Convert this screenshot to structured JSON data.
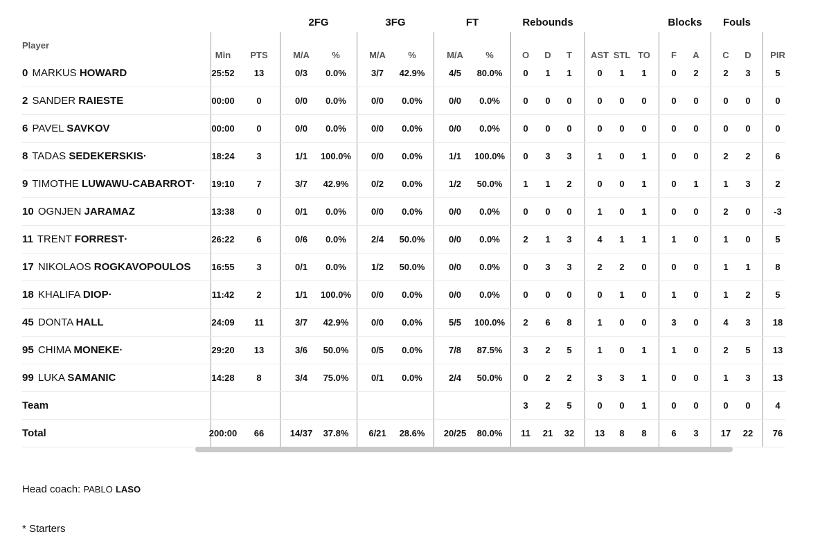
{
  "groups": [
    "2FG",
    "3FG",
    "FT",
    "Rebounds",
    "Blocks",
    "Fouls"
  ],
  "player_header": "Player",
  "columns": [
    "Min",
    "PTS",
    "M/A",
    "%",
    "M/A",
    "%",
    "M/A",
    "%",
    "O",
    "D",
    "T",
    "AST",
    "STL",
    "TO",
    "F",
    "A",
    "C",
    "D",
    "PIR"
  ],
  "players": [
    {
      "num": "0",
      "first": "MARKUS",
      "last": "HOWARD",
      "starter": "",
      "stats": [
        "25:52",
        "13",
        "0/3",
        "0.0%",
        "3/7",
        "42.9%",
        "4/5",
        "80.0%",
        "0",
        "1",
        "1",
        "0",
        "1",
        "1",
        "0",
        "2",
        "2",
        "3",
        "5"
      ]
    },
    {
      "num": "2",
      "first": "SANDER",
      "last": "RAIESTE",
      "starter": "",
      "stats": [
        "00:00",
        "0",
        "0/0",
        "0.0%",
        "0/0",
        "0.0%",
        "0/0",
        "0.0%",
        "0",
        "0",
        "0",
        "0",
        "0",
        "0",
        "0",
        "0",
        "0",
        "0",
        "0"
      ]
    },
    {
      "num": "6",
      "first": "PAVEL",
      "last": "SAVKOV",
      "starter": "",
      "stats": [
        "00:00",
        "0",
        "0/0",
        "0.0%",
        "0/0",
        "0.0%",
        "0/0",
        "0.0%",
        "0",
        "0",
        "0",
        "0",
        "0",
        "0",
        "0",
        "0",
        "0",
        "0",
        "0"
      ]
    },
    {
      "num": "8",
      "first": "TADAS",
      "last": "SEDEKERSKIS",
      "starter": "·",
      "stats": [
        "18:24",
        "3",
        "1/1",
        "100.0%",
        "0/0",
        "0.0%",
        "1/1",
        "100.0%",
        "0",
        "3",
        "3",
        "1",
        "0",
        "1",
        "0",
        "0",
        "2",
        "2",
        "6"
      ]
    },
    {
      "num": "9",
      "first": "TIMOTHE",
      "last": "LUWAWU-CABARROT",
      "starter": "·",
      "stats": [
        "19:10",
        "7",
        "3/7",
        "42.9%",
        "0/2",
        "0.0%",
        "1/2",
        "50.0%",
        "1",
        "1",
        "2",
        "0",
        "0",
        "1",
        "0",
        "1",
        "1",
        "3",
        "2"
      ]
    },
    {
      "num": "10",
      "first": "OGNJEN",
      "last": "JARAMAZ",
      "starter": "",
      "stats": [
        "13:38",
        "0",
        "0/1",
        "0.0%",
        "0/0",
        "0.0%",
        "0/0",
        "0.0%",
        "0",
        "0",
        "0",
        "1",
        "0",
        "1",
        "0",
        "0",
        "2",
        "0",
        "-3"
      ]
    },
    {
      "num": "11",
      "first": "TRENT",
      "last": "FORREST",
      "starter": "·",
      "stats": [
        "26:22",
        "6",
        "0/6",
        "0.0%",
        "2/4",
        "50.0%",
        "0/0",
        "0.0%",
        "2",
        "1",
        "3",
        "4",
        "1",
        "1",
        "1",
        "0",
        "1",
        "0",
        "5"
      ]
    },
    {
      "num": "17",
      "first": "NIKOLAOS",
      "last": "ROGKAVOPOULOS",
      "starter": "",
      "stats": [
        "16:55",
        "3",
        "0/1",
        "0.0%",
        "1/2",
        "50.0%",
        "0/0",
        "0.0%",
        "0",
        "3",
        "3",
        "2",
        "2",
        "0",
        "0",
        "0",
        "1",
        "1",
        "8"
      ]
    },
    {
      "num": "18",
      "first": "KHALIFA",
      "last": "DIOP",
      "starter": "·",
      "stats": [
        "11:42",
        "2",
        "1/1",
        "100.0%",
        "0/0",
        "0.0%",
        "0/0",
        "0.0%",
        "0",
        "0",
        "0",
        "0",
        "1",
        "0",
        "1",
        "0",
        "1",
        "2",
        "5"
      ]
    },
    {
      "num": "45",
      "first": "DONTA",
      "last": "HALL",
      "starter": "",
      "stats": [
        "24:09",
        "11",
        "3/7",
        "42.9%",
        "0/0",
        "0.0%",
        "5/5",
        "100.0%",
        "2",
        "6",
        "8",
        "1",
        "0",
        "0",
        "3",
        "0",
        "4",
        "3",
        "18"
      ]
    },
    {
      "num": "95",
      "first": "CHIMA",
      "last": "MONEKE",
      "starter": "·",
      "stats": [
        "29:20",
        "13",
        "3/6",
        "50.0%",
        "0/5",
        "0.0%",
        "7/8",
        "87.5%",
        "3",
        "2",
        "5",
        "1",
        "0",
        "1",
        "1",
        "0",
        "2",
        "5",
        "13"
      ]
    },
    {
      "num": "99",
      "first": "LUKA",
      "last": "SAMANIC",
      "starter": "",
      "stats": [
        "14:28",
        "8",
        "3/4",
        "75.0%",
        "0/1",
        "0.0%",
        "2/4",
        "50.0%",
        "0",
        "2",
        "2",
        "3",
        "3",
        "1",
        "0",
        "0",
        "1",
        "3",
        "13"
      ]
    }
  ],
  "team": {
    "label": "Team",
    "stats": [
      "",
      "",
      "",
      "",
      "",
      "",
      "",
      "",
      "3",
      "2",
      "5",
      "0",
      "0",
      "1",
      "0",
      "0",
      "0",
      "0",
      "4"
    ]
  },
  "total": {
    "label": "Total",
    "stats": [
      "200:00",
      "66",
      "14/37",
      "37.8%",
      "6/21",
      "28.6%",
      "20/25",
      "80.0%",
      "11",
      "21",
      "32",
      "13",
      "8",
      "8",
      "6",
      "3",
      "17",
      "22",
      "76"
    ]
  },
  "coach": {
    "prefix": "Head coach:",
    "first": "PABLO",
    "last": "LASO"
  },
  "starters_note": "* Starters"
}
